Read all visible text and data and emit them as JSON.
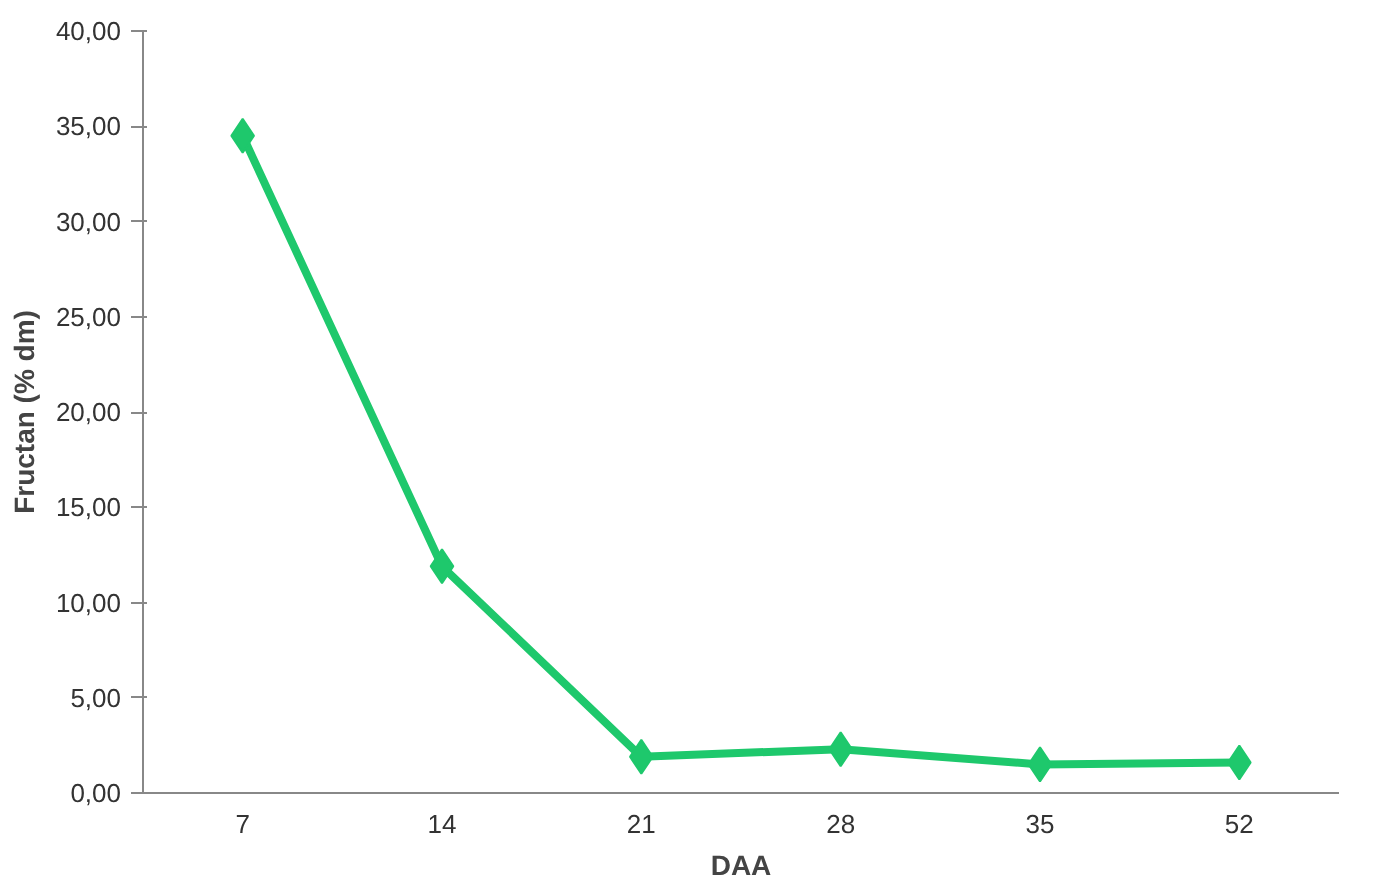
{
  "chart_data": {
    "type": "line",
    "xlabel": "DAA",
    "ylabel": "Fructan (% dm)",
    "categories": [
      "7",
      "14",
      "21",
      "28",
      "35",
      "52"
    ],
    "series": [
      {
        "color": "#1ec86c",
        "values": [
          34.5,
          11.9,
          1.9,
          2.3,
          1.5,
          1.6
        ]
      }
    ],
    "ylim": [
      0,
      40
    ],
    "yticks": [
      {
        "value": 0,
        "label": "0,00"
      },
      {
        "value": 5,
        "label": "5,00"
      },
      {
        "value": 10,
        "label": "10,00"
      },
      {
        "value": 15,
        "label": "15,00"
      },
      {
        "value": 20,
        "label": "20,00"
      },
      {
        "value": 25,
        "label": "25,00"
      },
      {
        "value": 30,
        "label": "30,00"
      },
      {
        "value": 35,
        "label": "35,00"
      },
      {
        "value": 40,
        "label": "40,00"
      }
    ],
    "grid": false,
    "marker": "diamond",
    "line_style": "solid"
  }
}
